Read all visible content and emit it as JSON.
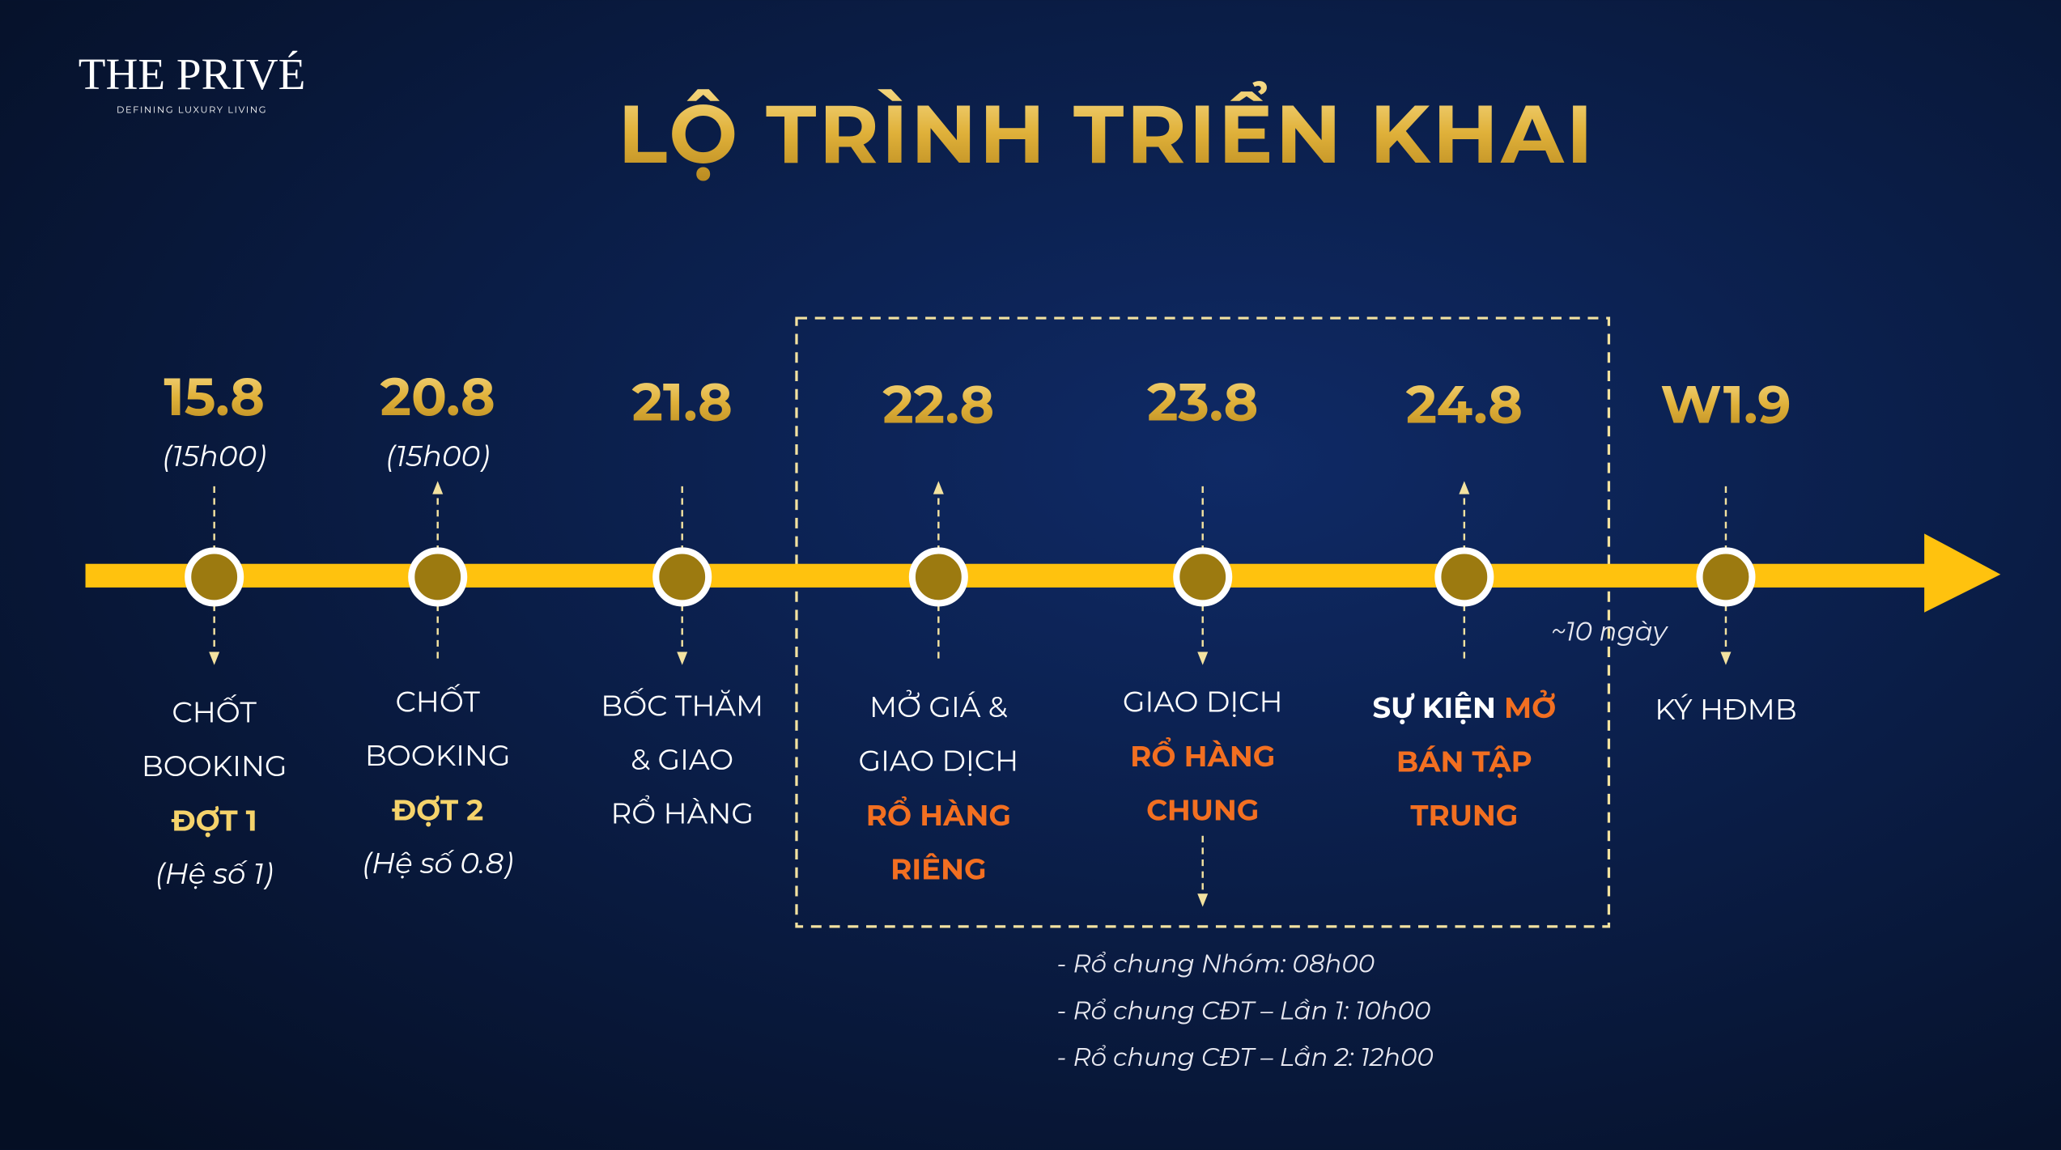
{
  "logo": {
    "name": "THE PRIVÉ",
    "tagline": "DEFINING LUXURY LIVING"
  },
  "title": "LỘ TRÌNH TRIỂN KHAI",
  "milestones": [
    {
      "date": "15.8",
      "time": "(15h00)",
      "arrow": "down",
      "lines": [
        [
          {
            "text": "CHỐT",
            "style": "normal"
          }
        ],
        [
          {
            "text": "BOOKING",
            "style": "normal"
          }
        ],
        [
          {
            "text": "ĐỢT 1",
            "style": "gold"
          }
        ],
        [
          {
            "text": "(Hệ số 1)",
            "style": "italic"
          }
        ]
      ]
    },
    {
      "date": "20.8",
      "time": "(15h00)",
      "arrow": "up",
      "lines": [
        [
          {
            "text": "CHỐT",
            "style": "normal"
          }
        ],
        [
          {
            "text": "BOOKING",
            "style": "normal"
          }
        ],
        [
          {
            "text": "ĐỢT 2",
            "style": "gold"
          }
        ],
        [
          {
            "text": "(Hệ số 0.8)",
            "style": "italic"
          }
        ]
      ]
    },
    {
      "date": "21.8",
      "arrow": "down",
      "lines": [
        [
          {
            "text": "BỐC THĂM",
            "style": "normal"
          }
        ],
        [
          {
            "text": "& GIAO",
            "style": "normal"
          }
        ],
        [
          {
            "text": "RỔ HÀNG",
            "style": "normal"
          }
        ]
      ]
    },
    {
      "date": "22.8",
      "arrow": "up",
      "lines": [
        [
          {
            "text": "MỞ GIÁ &",
            "style": "normal"
          }
        ],
        [
          {
            "text": "GIAO DỊCH",
            "style": "normal"
          }
        ],
        [
          {
            "text": "RỔ HÀNG",
            "style": "orange"
          }
        ],
        [
          {
            "text": "RIÊNG",
            "style": "orange"
          }
        ]
      ]
    },
    {
      "date": "23.8",
      "arrow": "down",
      "lines": [
        [
          {
            "text": "GIAO DỊCH",
            "style": "normal"
          }
        ],
        [
          {
            "text": "RỔ HÀNG",
            "style": "orange"
          }
        ],
        [
          {
            "text": "CHUNG",
            "style": "orange"
          }
        ]
      ]
    },
    {
      "date": "24.8",
      "arrow": "up",
      "lines": [
        [
          {
            "text": "SỰ KIỆN ",
            "style": "bold"
          },
          {
            "text": "MỞ",
            "style": "orange"
          }
        ],
        [
          {
            "text": "BÁN TẬP",
            "style": "orange"
          }
        ],
        [
          {
            "text": "TRUNG",
            "style": "orange"
          }
        ]
      ]
    },
    {
      "date": "W1.9",
      "arrow": "down",
      "lines": [
        [
          {
            "text": "KÝ HĐMB",
            "style": "normal"
          }
        ]
      ]
    }
  ],
  "gap_label": "~10 ngày",
  "notes": [
    "- Rổ chung Nhóm: 08h00",
    "- Rổ chung CĐT – Lần 1: 10h00",
    "- Rổ chung CĐT – Lần 2: 12h00"
  ]
}
